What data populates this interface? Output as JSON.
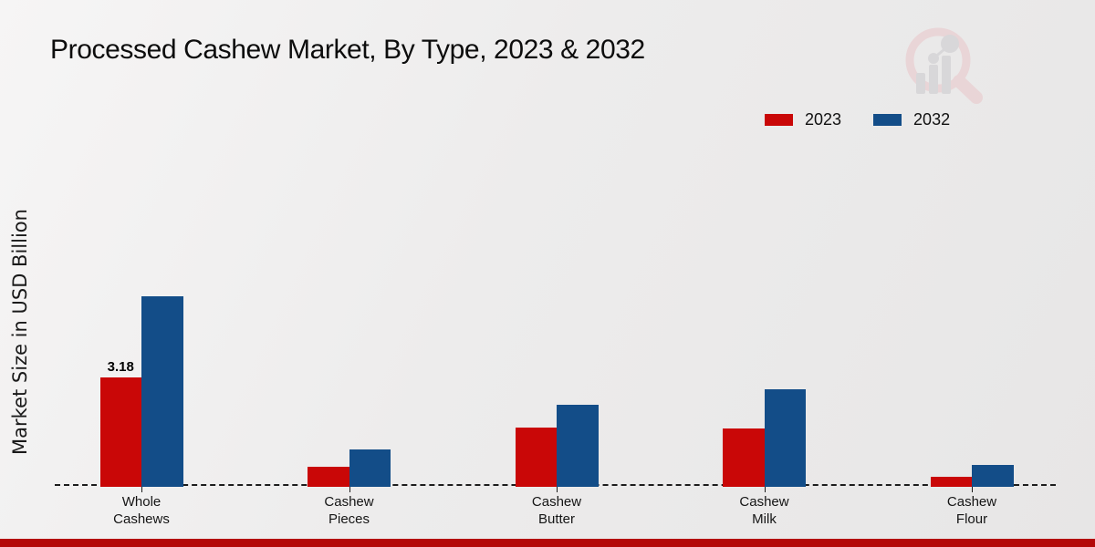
{
  "title": "Processed Cashew Market, By Type, 2023 & 2032",
  "chart_data": {
    "type": "bar",
    "title": "Processed Cashew Market, By Type, 2023 & 2032",
    "xlabel": "",
    "ylabel": "Market Size in USD Billion",
    "categories": [
      "Whole Cashews",
      "Cashew Pieces",
      "Cashew Butter",
      "Cashew Milk",
      "Cashew Flour"
    ],
    "series": [
      {
        "name": "2023",
        "color": "#c90707",
        "values": [
          3.18,
          0.58,
          1.73,
          1.7,
          0.3
        ]
      },
      {
        "name": "2032",
        "color": "#134d88",
        "values": [
          5.52,
          1.08,
          2.38,
          2.84,
          0.63
        ]
      }
    ],
    "annotations": [
      {
        "series_index": 0,
        "category_index": 0,
        "text": "3.18"
      }
    ],
    "ylim": [
      0,
      5.8
    ],
    "grid": false,
    "legend_position": "top-right",
    "baseline_style": "dashed",
    "unit": "USD Billion"
  },
  "branding": {
    "watermark_icon": "magnifier-bar-chart-logo",
    "ring_color": "#e9d2d4",
    "glyph_color": "#d6d4d7"
  },
  "footer": {
    "accent_color": "#b40808"
  }
}
